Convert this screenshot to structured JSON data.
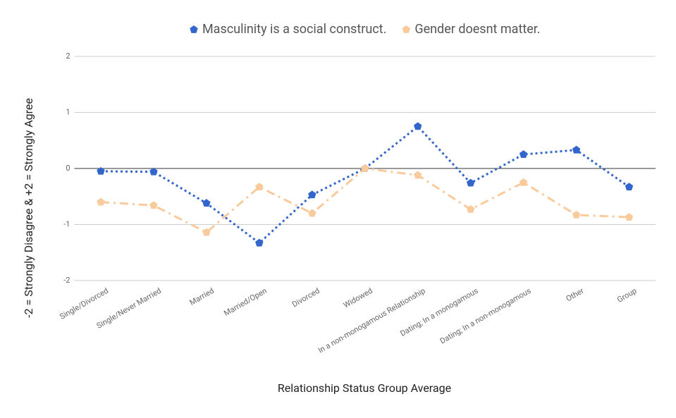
{
  "chart_data": {
    "type": "line",
    "x_label": "Relationship Status Group Average",
    "y_label": "-2 = Strongly Disagree & +2 = Strongly Agree",
    "categories": [
      "Single/Divorced",
      "Single/Never Married",
      "Married",
      "Married/Open",
      "Divorced",
      "Widowed",
      "In a non-monogamous Relationship",
      "Dating; In a monogamous",
      "Dating; In a non-monogamous",
      "Other",
      "Group"
    ],
    "series": [
      {
        "name": "Masculinity is a social construct.",
        "color": "#3366cc",
        "dash": "dotted",
        "values": [
          -0.05,
          -0.06,
          -0.62,
          -1.33,
          -0.47,
          0,
          0.75,
          -0.26,
          0.25,
          0.33,
          -0.33
        ]
      },
      {
        "name": "Gender doesnt matter.",
        "color": "#f9cb9c",
        "dash": "dash-dot",
        "values": [
          -0.6,
          -0.66,
          -1.14,
          -0.33,
          -0.8,
          0,
          -0.12,
          -0.73,
          -0.25,
          -0.83,
          -0.87
        ]
      }
    ],
    "ylim": [
      -2,
      2
    ],
    "yticks": [
      -2,
      -1,
      0,
      1,
      2
    ],
    "grid": true,
    "legend": "top"
  }
}
